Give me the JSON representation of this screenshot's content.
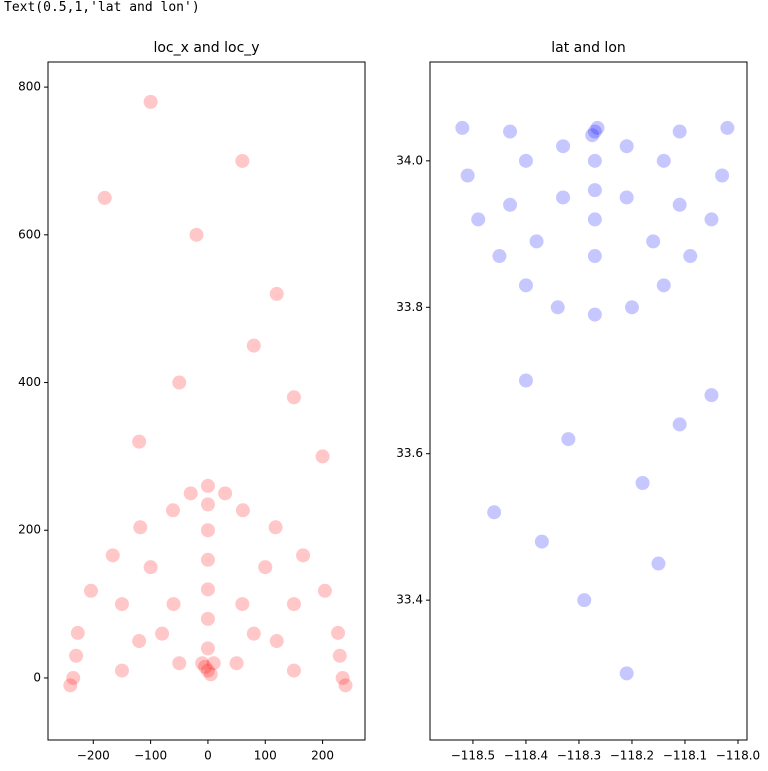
{
  "output_text": "Text(0.5,1,'lat and lon')",
  "chart_data": [
    {
      "type": "scatter",
      "title": "loc_x and loc_y",
      "color": "#ff0000",
      "xlim": [
        -279,
        274
      ],
      "ylim": [
        -84,
        834
      ],
      "xticks": [
        {
          "value": -200,
          "label": "−200"
        },
        {
          "value": -100,
          "label": "−100"
        },
        0,
        100,
        200
      ],
      "yticks": [
        0,
        200,
        400,
        600,
        800
      ],
      "x": [
        235,
        227,
        204,
        166,
        118,
        61,
        0,
        -61,
        -118,
        -166,
        -204,
        -227,
        -235,
        -240,
        240,
        -230,
        230,
        0,
        5,
        -5,
        0,
        0,
        0,
        0,
        0,
        -10,
        10,
        -150,
        150,
        -100,
        100,
        -120,
        120,
        -60,
        60,
        -50,
        50,
        -80,
        80,
        150,
        -150,
        0,
        -30,
        30,
        -50,
        80,
        -120,
        150,
        -20,
        60,
        -100,
        120,
        200,
        -180
      ],
      "values": [
        0,
        61,
        118,
        166,
        204,
        227,
        235,
        227,
        204,
        166,
        118,
        61,
        0,
        -10,
        -10,
        30,
        30,
        10,
        5,
        15,
        40,
        80,
        120,
        160,
        200,
        20,
        20,
        100,
        100,
        150,
        150,
        50,
        50,
        100,
        100,
        20,
        20,
        60,
        60,
        10,
        10,
        260,
        250,
        250,
        400,
        450,
        320,
        380,
        600,
        700,
        780,
        520,
        300,
        650
      ]
    },
    {
      "type": "scatter",
      "title": "lat and lon",
      "color": "#0000ff",
      "xlim": [
        -118.581,
        -117.983
      ],
      "ylim": [
        33.209,
        34.135
      ],
      "xticks": [
        {
          "value": -118.5,
          "label": "−118.5"
        },
        {
          "value": -118.4,
          "label": "−118.4"
        },
        {
          "value": -118.3,
          "label": "−118.3"
        },
        {
          "value": -118.2,
          "label": "−118.2"
        },
        {
          "value": -118.1,
          "label": "−118.1"
        },
        {
          "value": -118.0,
          "label": "−118.0"
        }
      ],
      "yticks": [
        {
          "value": 33.4,
          "label": "33.4"
        },
        33.6,
        33.8,
        {
          "value": 34.0,
          "label": "34.0"
        }
      ],
      "x": [
        -118.02,
        -118.03,
        -118.05,
        -118.09,
        -118.14,
        -118.2,
        -118.27,
        -118.34,
        -118.4,
        -118.45,
        -118.49,
        -118.51,
        -118.52,
        -118.27,
        -118.265,
        -118.275,
        -118.27,
        -118.27,
        -118.27,
        -118.27,
        -118.43,
        -118.11,
        -118.38,
        -118.16,
        -118.4,
        -118.14,
        -118.33,
        -118.21,
        -118.33,
        -118.21,
        -118.11,
        -118.43,
        -118.32,
        -118.18,
        -118.4,
        -118.11,
        -118.29,
        -118.21,
        -118.37,
        -118.15,
        -118.05,
        -118.46
      ],
      "values": [
        34.045,
        33.98,
        33.92,
        33.87,
        33.83,
        33.8,
        33.79,
        33.8,
        33.83,
        33.87,
        33.92,
        33.98,
        34.045,
        34.04,
        34.045,
        34.035,
        34.0,
        33.96,
        33.92,
        33.87,
        33.94,
        33.94,
        33.89,
        33.89,
        34.0,
        34.0,
        33.95,
        33.95,
        34.02,
        34.02,
        34.04,
        34.04,
        33.62,
        33.56,
        33.7,
        33.64,
        33.4,
        33.3,
        33.48,
        33.45,
        33.68,
        33.52
      ]
    }
  ]
}
